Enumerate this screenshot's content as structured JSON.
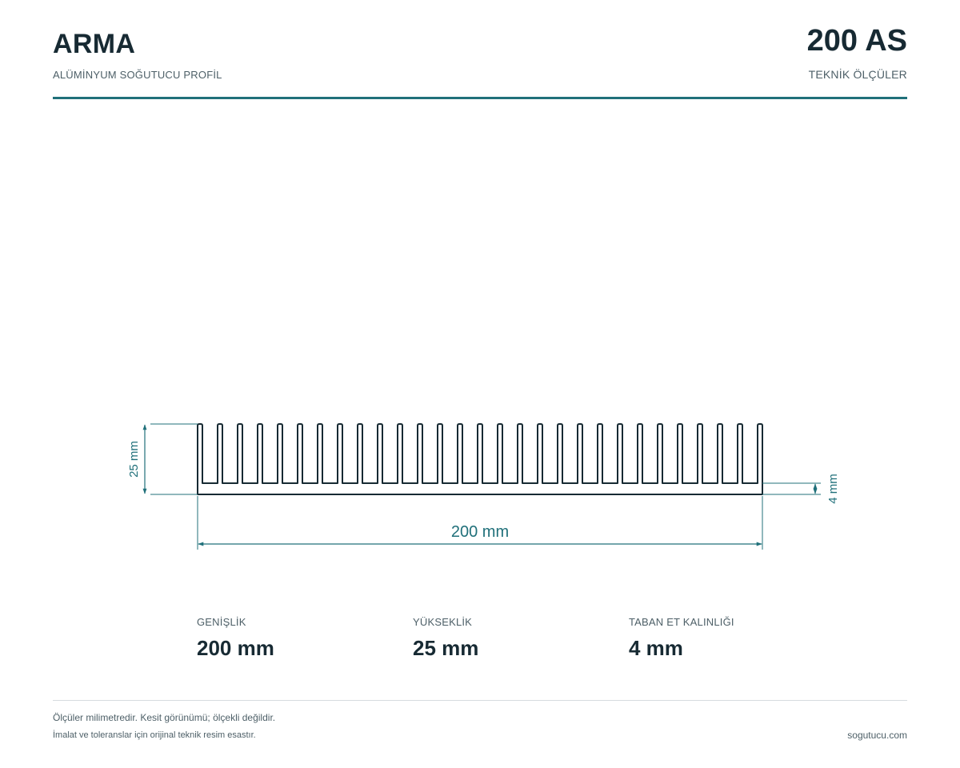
{
  "header": {
    "brand": "ARMA",
    "subtitle": "ALÜMİNYUM SOĞUTUCU PROFİL",
    "code": "200 AS",
    "code_subtitle": "TEKNİK ÖLÇÜLER"
  },
  "drawing": {
    "fin_count": 29,
    "dimensions": {
      "width_label": "200 mm",
      "height_label": "25 mm",
      "base_label": "4 mm"
    }
  },
  "specs": [
    {
      "label": "GENİŞLİK",
      "value": "200 mm"
    },
    {
      "label": "YÜKSEKLİK",
      "value": "25 mm"
    },
    {
      "label": "TABAN ET KALINLIĞI",
      "value": "4 mm"
    }
  ],
  "footer": {
    "note1": "Ölçüler milimetredir. Kesit görünümü; ölçekli değildir.",
    "note2": "İmalat ve toleranslar için orijinal teknik resim esastır.",
    "site": "sogutucu.com"
  },
  "colors": {
    "accent": "#20707a",
    "ink": "#172a33",
    "muted": "#4d5f67"
  }
}
